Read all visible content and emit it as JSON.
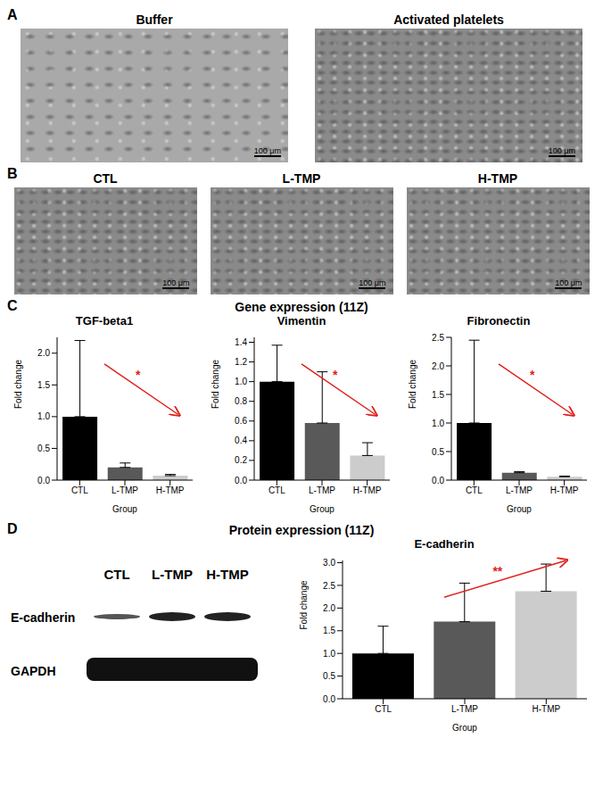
{
  "panels": {
    "A": {
      "label": "A",
      "images": [
        {
          "title": "Buffer",
          "scale_bar": "100 μm"
        },
        {
          "title": "Activated platelets",
          "scale_bar": "100 μm"
        }
      ]
    },
    "B": {
      "label": "B",
      "images": [
        {
          "title": "CTL",
          "scale_bar": "100 μm"
        },
        {
          "title": "L-TMP",
          "scale_bar": "100 μm"
        },
        {
          "title": "H-TMP",
          "scale_bar": "100 μm"
        }
      ]
    },
    "C": {
      "label": "C",
      "title": "Gene expression (11Z)"
    },
    "D": {
      "label": "D",
      "title": "Protein expression (11Z)",
      "blot": {
        "lanes": [
          "CTL",
          "L-TMP",
          "H-TMP"
        ],
        "rows": [
          "E-cadherin",
          "GAPDH"
        ]
      }
    }
  },
  "chart_data": [
    {
      "type": "bar",
      "title": "TGF-beta1",
      "y_label": "Fold change",
      "x_label": "Group",
      "categories": [
        "CTL",
        "L-TMP",
        "H-TMP"
      ],
      "values": [
        1.0,
        0.2,
        0.07
      ],
      "error": [
        1.2,
        0.07,
        0.02
      ],
      "colors": [
        "#000000",
        "#595959",
        "#cccccc"
      ],
      "ylim": [
        0,
        2.25
      ],
      "yticks": [
        {
          "value": 0,
          "label": "0.0"
        },
        0.5,
        {
          "value": 1,
          "label": "1.0"
        },
        1.5,
        {
          "value": 2,
          "label": "2.0"
        }
      ],
      "annotation": "*"
    },
    {
      "type": "bar",
      "title": "Vimentin",
      "y_label": "Fold change",
      "x_label": "Group",
      "categories": [
        "CTL",
        "L-TMP",
        "H-TMP"
      ],
      "values": [
        1.0,
        0.58,
        0.25
      ],
      "error": [
        0.37,
        0.52,
        0.13
      ],
      "colors": [
        "#000000",
        "#595959",
        "#cccccc"
      ],
      "ylim": [
        0,
        1.45
      ],
      "yticks": [
        {
          "value": 0,
          "label": "0.0"
        },
        0.2,
        0.4,
        0.6,
        0.8,
        {
          "value": 1,
          "label": "1.0"
        },
        1.2,
        1.4
      ],
      "annotation": "*"
    },
    {
      "type": "bar",
      "title": "Fibronectin",
      "y_label": "Fold change",
      "x_label": "Group",
      "categories": [
        "CTL",
        "L-TMP",
        "H-TMP"
      ],
      "values": [
        1.0,
        0.13,
        0.06
      ],
      "error": [
        1.45,
        0.02,
        0.01
      ],
      "colors": [
        "#000000",
        "#595959",
        "#cccccc"
      ],
      "ylim": [
        0,
        2.5
      ],
      "yticks": [
        {
          "value": 0,
          "label": "0.0"
        },
        0.5,
        {
          "value": 1,
          "label": "1.0"
        },
        1.5,
        {
          "value": 2,
          "label": "2.0"
        },
        2.5
      ],
      "annotation": "*"
    },
    {
      "type": "bar",
      "title": "E-cadherin",
      "y_label": "Fold change",
      "x_label": "Group",
      "categories": [
        "CTL",
        "L-TMP",
        "H-TMP"
      ],
      "values": [
        1.0,
        1.7,
        2.37
      ],
      "error": [
        0.6,
        0.85,
        0.6
      ],
      "colors": [
        "#000000",
        "#595959",
        "#cccccc"
      ],
      "ylim": [
        0,
        3.05
      ],
      "yticks": [
        {
          "value": 0,
          "label": "0.0"
        },
        0.5,
        {
          "value": 1,
          "label": "1.0"
        },
        1.5,
        {
          "value": 2,
          "label": "2.0"
        },
        2.5,
        {
          "value": 3,
          "label": "3.0"
        }
      ],
      "annotation": "**"
    }
  ]
}
